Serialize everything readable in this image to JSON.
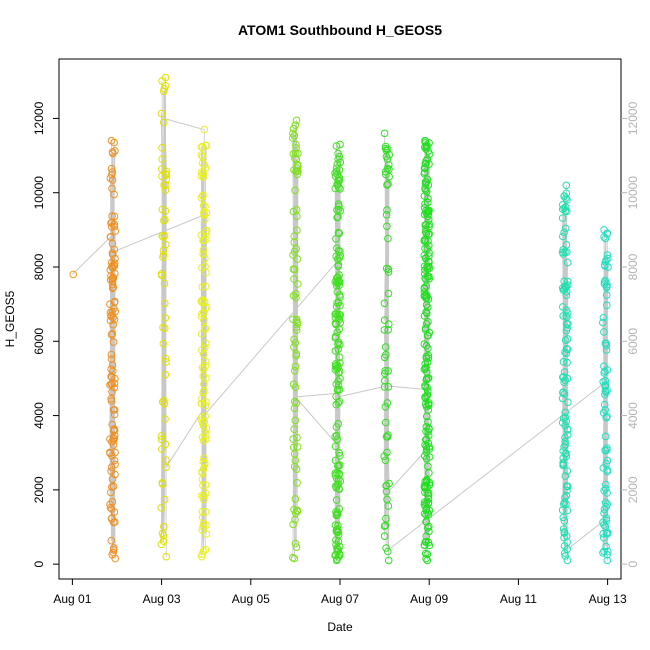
{
  "chart_data": {
    "type": "scatter",
    "title": "ATOM1 Southbound H_GEOS5",
    "xlabel": "Date",
    "ylabel": "H_GEOS5",
    "x_ticks": [
      "Aug 01",
      "Aug 03",
      "Aug 05",
      "Aug 07",
      "Aug 09",
      "Aug 11",
      "Aug 13"
    ],
    "y_ticks": [
      "0",
      "2000",
      "4000",
      "6000",
      "8000",
      "10000",
      "12000"
    ],
    "x_tick_days": [
      1,
      3,
      5,
      7,
      9,
      11,
      13
    ],
    "y_tick_values": [
      0,
      2000,
      4000,
      6000,
      8000,
      10000,
      12000
    ],
    "xlim_days": [
      0.7,
      13.3
    ],
    "ylim": [
      -400,
      13600
    ],
    "grid": false,
    "right_axis": true,
    "connect_color": "#c8c8c8",
    "flights": [
      {
        "day": 1.0,
        "color": "#f0a020",
        "ymin": 7800,
        "ymax": 7800,
        "n": 1
      },
      {
        "day": 1.9,
        "color": "#f09020",
        "ymin": 150,
        "ymax": 11400,
        "n": 120
      },
      {
        "day": 3.05,
        "color": "#e0e000",
        "ymin": 200,
        "ymax": 13100,
        "n": 60
      },
      {
        "day": 3.95,
        "color": "#e8f020",
        "ymin": 200,
        "ymax": 11700,
        "n": 110
      },
      {
        "day": 6.0,
        "color": "#80e020",
        "ymin": 150,
        "ymax": 11950,
        "n": 80
      },
      {
        "day": 6.95,
        "color": "#40e020",
        "ymin": 100,
        "ymax": 11300,
        "n": 160
      },
      {
        "day": 8.05,
        "color": "#30e020",
        "ymin": 100,
        "ymax": 11600,
        "n": 60
      },
      {
        "day": 8.95,
        "color": "#20e020",
        "ymin": 100,
        "ymax": 11400,
        "n": 200
      },
      {
        "day": 12.05,
        "color": "#20e0b0",
        "ymin": 100,
        "ymax": 10200,
        "n": 110
      },
      {
        "day": 12.95,
        "color": "#20e0c0",
        "ymin": 100,
        "ymax": 9000,
        "n": 80
      }
    ],
    "transits": [
      {
        "x": [
          1.0,
          1.85
        ],
        "y": [
          7800,
          8800
        ]
      },
      {
        "x": [
          1.9,
          3.95
        ],
        "y": [
          8400,
          9400
        ]
      },
      {
        "x": [
          3.05,
          3.95
        ],
        "y": [
          12000,
          11700
        ]
      },
      {
        "x": [
          3.1,
          3.95
        ],
        "y": [
          2600,
          4200
        ]
      },
      {
        "x": [
          3.95,
          6.9
        ],
        "y": [
          4000,
          8100
        ]
      },
      {
        "x": [
          6.0,
          6.95
        ],
        "y": [
          4500,
          4600
        ]
      },
      {
        "x": [
          6.0,
          6.95
        ],
        "y": [
          4500,
          3200
        ]
      },
      {
        "x": [
          6.95,
          8.05
        ],
        "y": [
          4500,
          4800
        ]
      },
      {
        "x": [
          8.05,
          8.95
        ],
        "y": [
          4800,
          4700
        ]
      },
      {
        "x": [
          8.05,
          8.95
        ],
        "y": [
          1900,
          3100
        ]
      },
      {
        "x": [
          8.1,
          12.95
        ],
        "y": [
          400,
          4900
        ]
      },
      {
        "x": [
          12.1,
          12.95
        ],
        "y": [
          400,
          1200
        ]
      }
    ]
  }
}
